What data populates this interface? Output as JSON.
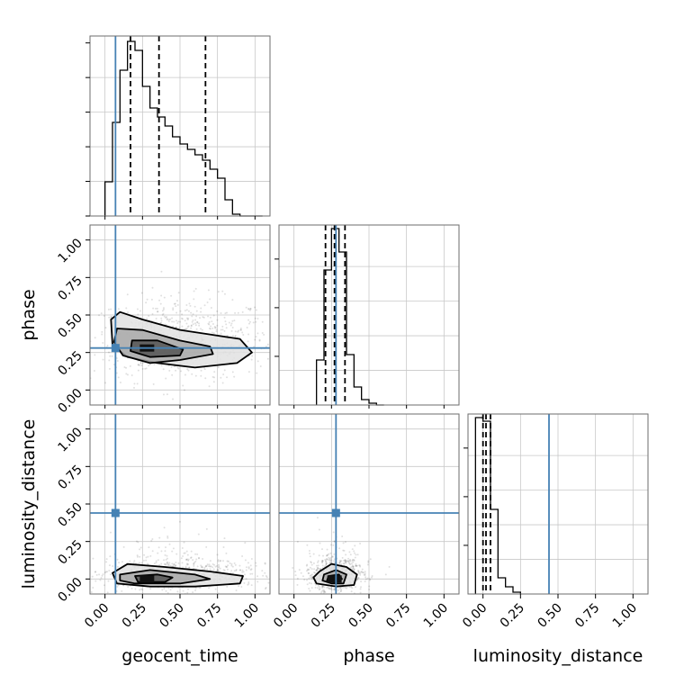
{
  "chart_data": {
    "type": "corner",
    "parameters": [
      "geocent_time",
      "phase",
      "luminosity_distance"
    ],
    "axis_labels": {
      "x": [
        "geocent_time",
        "phase",
        "luminosity_distance"
      ],
      "y": [
        "phase",
        "luminosity_distance"
      ]
    },
    "axis_range": [
      -0.1,
      1.1
    ],
    "tick_labels": [
      "0.00",
      "0.25",
      "0.50",
      "0.75",
      "1.00"
    ],
    "tick_values": [
      0,
      0.25,
      0.5,
      0.75,
      1.0
    ],
    "grid": true,
    "truths": {
      "geocent_time": 0.07,
      "phase": 0.28,
      "luminosity_distance": 0.44
    },
    "truth_color": "#4682b4",
    "quantiles": {
      "geocent_time": [
        0.17,
        0.36,
        0.67
      ],
      "phase": [
        0.21,
        0.27,
        0.34
      ],
      "luminosity_distance": [
        0.0,
        0.02,
        0.05
      ]
    },
    "histograms": {
      "geocent_time": {
        "bin_edges": [
          0.0,
          0.05,
          0.1,
          0.15,
          0.2,
          0.25,
          0.3,
          0.35,
          0.4,
          0.45,
          0.5,
          0.55,
          0.6,
          0.65,
          0.7,
          0.75,
          0.8,
          0.85,
          0.9,
          0.95,
          1.0,
          1.05
        ],
        "counts": [
          0.19,
          0.52,
          0.81,
          0.97,
          0.92,
          0.72,
          0.6,
          0.55,
          0.5,
          0.44,
          0.4,
          0.37,
          0.34,
          0.31,
          0.26,
          0.21,
          0.09,
          0.01,
          0,
          0,
          0
        ]
      },
      "phase": {
        "bin_edges": [
          0.15,
          0.2,
          0.25,
          0.3,
          0.35,
          0.4,
          0.45,
          0.5,
          0.55,
          0.6
        ],
        "counts": [
          0.25,
          0.75,
          0.98,
          0.85,
          0.28,
          0.1,
          0.03,
          0.01,
          0
        ]
      },
      "luminosity_distance": {
        "bin_edges": [
          -0.05,
          0.0,
          0.05,
          0.1,
          0.15,
          0.2,
          0.25
        ],
        "counts": [
          0.98,
          0.96,
          0.47,
          0.09,
          0.04,
          0.01
        ]
      }
    },
    "contour_panels": [
      {
        "x": "geocent_time",
        "y": "phase",
        "density_center": [
          0.28,
          0.28
        ],
        "contours": [
          {
            "level": "outer",
            "points": [
              [
                0.04,
                0.47
              ],
              [
                0.1,
                0.52
              ],
              [
                0.25,
                0.47
              ],
              [
                0.5,
                0.4
              ],
              [
                0.7,
                0.37
              ],
              [
                0.9,
                0.34
              ],
              [
                0.98,
                0.25
              ],
              [
                0.88,
                0.18
              ],
              [
                0.6,
                0.15
              ],
              [
                0.35,
                0.18
              ],
              [
                0.15,
                0.22
              ],
              [
                0.05,
                0.3
              ]
            ]
          },
          {
            "level": "middle",
            "points": [
              [
                0.08,
                0.41
              ],
              [
                0.25,
                0.4
              ],
              [
                0.5,
                0.33
              ],
              [
                0.7,
                0.29
              ],
              [
                0.72,
                0.24
              ],
              [
                0.5,
                0.2
              ],
              [
                0.3,
                0.18
              ],
              [
                0.12,
                0.23
              ],
              [
                0.06,
                0.32
              ]
            ]
          },
          {
            "level": "inner",
            "points": [
              [
                0.18,
                0.33
              ],
              [
                0.35,
                0.33
              ],
              [
                0.52,
                0.27
              ],
              [
                0.5,
                0.23
              ],
              [
                0.3,
                0.22
              ],
              [
                0.17,
                0.26
              ]
            ]
          }
        ]
      },
      {
        "x": "geocent_time",
        "y": "luminosity_distance",
        "density_center": [
          0.28,
          0.0
        ],
        "contours": [
          {
            "level": "outer",
            "points": [
              [
                0.05,
                0.04
              ],
              [
                0.15,
                0.1
              ],
              [
                0.4,
                0.08
              ],
              [
                0.7,
                0.05
              ],
              [
                0.92,
                0.02
              ],
              [
                0.9,
                -0.03
              ],
              [
                0.6,
                -0.05
              ],
              [
                0.3,
                -0.05
              ],
              [
                0.08,
                -0.03
              ]
            ]
          },
          {
            "level": "middle",
            "points": [
              [
                0.1,
                0.03
              ],
              [
                0.3,
                0.06
              ],
              [
                0.6,
                0.03
              ],
              [
                0.7,
                0.0
              ],
              [
                0.5,
                -0.03
              ],
              [
                0.2,
                -0.03
              ],
              [
                0.1,
                -0.01
              ]
            ]
          },
          {
            "level": "inner",
            "points": [
              [
                0.2,
                0.02
              ],
              [
                0.35,
                0.03
              ],
              [
                0.45,
                0.01
              ],
              [
                0.4,
                -0.02
              ],
              [
                0.22,
                -0.02
              ]
            ]
          }
        ]
      },
      {
        "x": "phase",
        "y": "luminosity_distance",
        "density_center": [
          0.27,
          0.0
        ],
        "contours": [
          {
            "level": "outer",
            "points": [
              [
                0.17,
                0.05
              ],
              [
                0.25,
                0.1
              ],
              [
                0.35,
                0.08
              ],
              [
                0.42,
                0.03
              ],
              [
                0.4,
                -0.04
              ],
              [
                0.28,
                -0.05
              ],
              [
                0.15,
                -0.03
              ],
              [
                0.13,
                0.01
              ]
            ]
          },
          {
            "level": "middle",
            "points": [
              [
                0.2,
                0.03
              ],
              [
                0.28,
                0.06
              ],
              [
                0.35,
                0.03
              ],
              [
                0.33,
                -0.03
              ],
              [
                0.25,
                -0.03
              ],
              [
                0.19,
                -0.01
              ]
            ]
          },
          {
            "level": "inner",
            "points": [
              [
                0.23,
                0.02
              ],
              [
                0.3,
                0.03
              ],
              [
                0.32,
                0.0
              ],
              [
                0.27,
                -0.02
              ],
              [
                0.22,
                -0.01
              ]
            ]
          }
        ]
      }
    ]
  }
}
